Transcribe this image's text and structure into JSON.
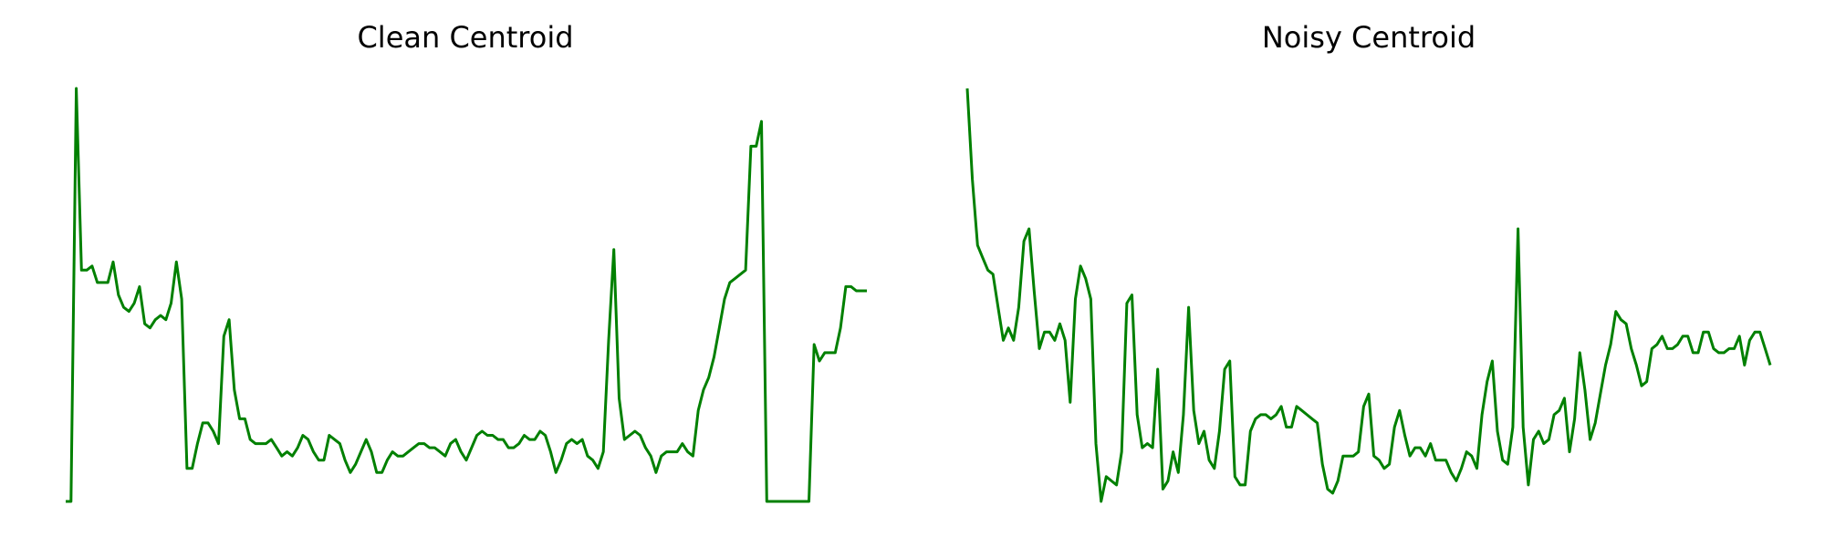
{
  "colors": {
    "line": "#008000"
  },
  "chart_data": [
    {
      "type": "line",
      "title": "Clean Centroid",
      "grid": false,
      "axes_visible": false,
      "ylim": [
        0,
        100
      ],
      "series": [
        {
          "values": [
            0,
            0,
            100,
            56,
            56,
            57,
            53,
            53,
            53,
            58,
            50,
            47,
            46,
            48,
            52,
            43,
            42,
            44,
            45,
            44,
            48,
            58,
            49,
            8,
            8,
            14,
            19,
            19,
            17,
            14,
            40,
            44,
            27,
            20,
            20,
            15,
            14,
            14,
            14,
            15,
            13,
            11,
            12,
            11,
            13,
            16,
            15,
            12,
            10,
            10,
            16,
            15,
            14,
            10,
            7,
            9,
            12,
            15,
            12,
            7,
            7,
            10,
            12,
            11,
            11,
            12,
            13,
            14,
            14,
            13,
            13,
            12,
            11,
            14,
            15,
            12,
            10,
            13,
            16,
            17,
            16,
            16,
            15,
            15,
            13,
            13,
            14,
            16,
            15,
            15,
            17,
            16,
            12,
            7,
            10,
            14,
            15,
            14,
            15,
            11,
            10,
            8,
            12,
            39,
            61,
            25,
            15,
            16,
            17,
            16,
            13,
            11,
            7,
            11,
            12,
            12,
            12,
            14,
            12,
            11,
            22,
            27,
            30,
            35,
            42,
            49,
            53,
            54,
            55,
            56,
            86,
            86,
            92,
            0,
            0,
            0,
            0,
            0,
            0,
            0,
            0,
            0,
            38,
            34,
            36,
            36,
            36,
            42,
            52,
            52,
            51,
            51,
            51
          ]
        }
      ]
    },
    {
      "type": "line",
      "title": "Noisy Centroid",
      "grid": false,
      "axes_visible": false,
      "ylim": [
        0,
        100
      ],
      "series": [
        {
          "values": [
            100,
            78,
            62,
            59,
            56,
            55,
            47,
            39,
            42,
            39,
            47,
            63,
            66,
            51,
            37,
            41,
            41,
            39,
            43,
            39,
            24,
            49,
            57,
            54,
            49,
            14,
            0,
            6,
            5,
            4,
            12,
            48,
            50,
            21,
            13,
            14,
            13,
            32,
            3,
            5,
            12,
            7,
            21,
            47,
            22,
            14,
            17,
            10,
            8,
            17,
            32,
            34,
            6,
            4,
            4,
            17,
            20,
            21,
            21,
            20,
            21,
            23,
            18,
            18,
            23,
            22,
            21,
            20,
            19,
            9,
            3,
            2,
            5,
            11,
            11,
            11,
            12,
            23,
            26,
            11,
            10,
            8,
            9,
            18,
            22,
            16,
            11,
            13,
            13,
            11,
            14,
            10,
            10,
            10,
            7,
            5,
            8,
            12,
            11,
            8,
            21,
            29,
            34,
            17,
            10,
            9,
            18,
            66,
            18,
            4,
            15,
            17,
            14,
            15,
            21,
            22,
            25,
            12,
            20,
            36,
            27,
            15,
            19,
            26,
            33,
            38,
            46,
            44,
            43,
            37,
            33,
            28,
            29,
            37,
            38,
            40,
            37,
            37,
            38,
            40,
            40,
            36,
            36,
            41,
            41,
            37,
            36,
            36,
            37,
            37,
            40,
            33,
            39,
            41,
            41,
            37,
            33
          ]
        }
      ]
    }
  ]
}
